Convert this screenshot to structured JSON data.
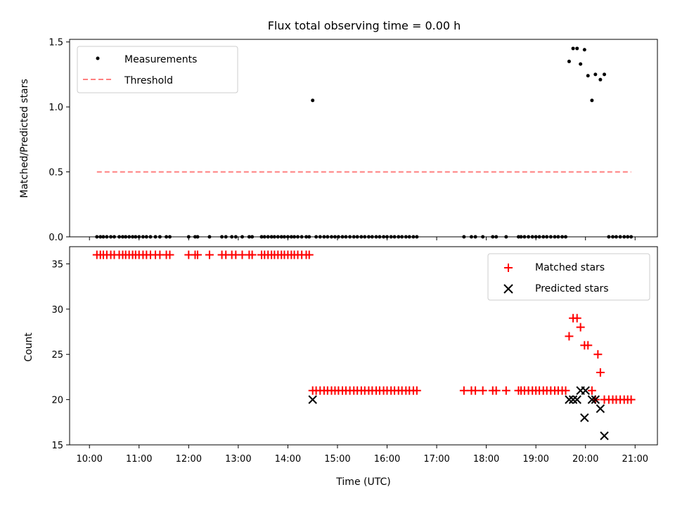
{
  "chart_data": [
    {
      "type": "scatter",
      "title": "Flux total observing time = 0.00 h",
      "xlabel": "",
      "ylabel": "Matched/Predicted stars",
      "xlim": [
        9.6,
        21.45
      ],
      "ylim": [
        0.0,
        1.52
      ],
      "xticks": [
        10,
        11,
        12,
        13,
        14,
        15,
        16,
        17,
        18,
        19,
        20,
        21
      ],
      "yticks": [
        0.0,
        0.5,
        1.0,
        1.5
      ],
      "ytick_labels": [
        "0.0",
        "0.5",
        "1.0",
        "1.5"
      ],
      "legend": {
        "position": "top-left",
        "entries": [
          "Measurements",
          "Threshold"
        ]
      },
      "series": [
        {
          "name": "Measurements",
          "marker": "dot",
          "color": "#000000",
          "points": [
            [
              10.15,
              0
            ],
            [
              10.22,
              0
            ],
            [
              10.28,
              0
            ],
            [
              10.35,
              0
            ],
            [
              10.43,
              0
            ],
            [
              10.5,
              0
            ],
            [
              10.6,
              0
            ],
            [
              10.67,
              0
            ],
            [
              10.73,
              0
            ],
            [
              10.8,
              0
            ],
            [
              10.87,
              0
            ],
            [
              10.93,
              0
            ],
            [
              11.0,
              0
            ],
            [
              11.08,
              0
            ],
            [
              11.15,
              0
            ],
            [
              11.23,
              0
            ],
            [
              11.33,
              0
            ],
            [
              11.42,
              0
            ],
            [
              11.55,
              0
            ],
            [
              11.62,
              0
            ],
            [
              12.0,
              0
            ],
            [
              12.13,
              0
            ],
            [
              12.18,
              0
            ],
            [
              12.42,
              0
            ],
            [
              12.67,
              0
            ],
            [
              12.75,
              0
            ],
            [
              12.87,
              0
            ],
            [
              12.95,
              0
            ],
            [
              13.08,
              0
            ],
            [
              13.22,
              0
            ],
            [
              13.28,
              0
            ],
            [
              13.47,
              0
            ],
            [
              13.53,
              0
            ],
            [
              13.6,
              0
            ],
            [
              13.67,
              0
            ],
            [
              13.73,
              0
            ],
            [
              13.8,
              0
            ],
            [
              13.87,
              0
            ],
            [
              13.93,
              0
            ],
            [
              14.0,
              0
            ],
            [
              14.07,
              0
            ],
            [
              14.13,
              0
            ],
            [
              14.2,
              0
            ],
            [
              14.28,
              0
            ],
            [
              14.37,
              0
            ],
            [
              14.43,
              0
            ],
            [
              14.5,
              1.05
            ],
            [
              14.57,
              0
            ],
            [
              14.65,
              0
            ],
            [
              14.73,
              0
            ],
            [
              14.8,
              0
            ],
            [
              14.88,
              0
            ],
            [
              14.95,
              0
            ],
            [
              15.02,
              0
            ],
            [
              15.1,
              0
            ],
            [
              15.17,
              0
            ],
            [
              15.25,
              0
            ],
            [
              15.33,
              0
            ],
            [
              15.4,
              0
            ],
            [
              15.48,
              0
            ],
            [
              15.55,
              0
            ],
            [
              15.63,
              0
            ],
            [
              15.7,
              0
            ],
            [
              15.78,
              0
            ],
            [
              15.85,
              0
            ],
            [
              15.93,
              0
            ],
            [
              16.0,
              0
            ],
            [
              16.08,
              0
            ],
            [
              16.15,
              0
            ],
            [
              16.23,
              0
            ],
            [
              16.3,
              0
            ],
            [
              16.38,
              0
            ],
            [
              16.45,
              0
            ],
            [
              16.53,
              0
            ],
            [
              16.6,
              0
            ],
            [
              17.55,
              0
            ],
            [
              17.7,
              0
            ],
            [
              17.78,
              0
            ],
            [
              17.93,
              0
            ],
            [
              18.13,
              0
            ],
            [
              18.2,
              0
            ],
            [
              18.4,
              0
            ],
            [
              18.65,
              0
            ],
            [
              18.7,
              0
            ],
            [
              18.77,
              0
            ],
            [
              18.85,
              0
            ],
            [
              18.93,
              0
            ],
            [
              19.0,
              0
            ],
            [
              19.07,
              0
            ],
            [
              19.15,
              0
            ],
            [
              19.22,
              0
            ],
            [
              19.3,
              0
            ],
            [
              19.38,
              0
            ],
            [
              19.45,
              0
            ],
            [
              19.53,
              0
            ],
            [
              19.6,
              0
            ],
            [
              19.67,
              1.35
            ],
            [
              19.75,
              1.45
            ],
            [
              19.83,
              1.45
            ],
            [
              19.9,
              1.33
            ],
            [
              19.98,
              1.44
            ],
            [
              20.05,
              1.24
            ],
            [
              20.13,
              1.05
            ],
            [
              20.2,
              1.25
            ],
            [
              20.3,
              1.21
            ],
            [
              20.38,
              1.25
            ],
            [
              20.47,
              0
            ],
            [
              20.55,
              0
            ],
            [
              20.62,
              0
            ],
            [
              20.7,
              0
            ],
            [
              20.78,
              0
            ],
            [
              20.85,
              0
            ],
            [
              20.92,
              0
            ]
          ]
        },
        {
          "name": "Threshold",
          "style": "dashed-line",
          "color": "#ff7f7f",
          "x": [
            10.15,
            20.92
          ],
          "y": [
            0.5,
            0.5
          ]
        }
      ]
    },
    {
      "type": "scatter",
      "title": "",
      "xlabel": "Time (UTC)",
      "ylabel": "Count",
      "xlim": [
        9.6,
        21.45
      ],
      "ylim": [
        15,
        36.9
      ],
      "xticks": [
        10,
        11,
        12,
        13,
        14,
        15,
        16,
        17,
        18,
        19,
        20,
        21
      ],
      "xtick_labels": [
        "10:00",
        "11:00",
        "12:00",
        "13:00",
        "14:00",
        "15:00",
        "16:00",
        "17:00",
        "18:00",
        "19:00",
        "20:00",
        "21:00"
      ],
      "yticks": [
        15,
        20,
        25,
        30,
        35
      ],
      "ytick_labels": [
        "15",
        "20",
        "25",
        "30",
        "35"
      ],
      "legend": {
        "position": "top-right",
        "entries": [
          "Matched stars",
          "Predicted stars"
        ]
      },
      "series": [
        {
          "name": "Matched stars",
          "marker": "plus",
          "color": "#ff0000",
          "points": [
            [
              10.15,
              36
            ],
            [
              10.22,
              36
            ],
            [
              10.28,
              36
            ],
            [
              10.35,
              36
            ],
            [
              10.43,
              36
            ],
            [
              10.5,
              36
            ],
            [
              10.6,
              36
            ],
            [
              10.67,
              36
            ],
            [
              10.73,
              36
            ],
            [
              10.8,
              36
            ],
            [
              10.87,
              36
            ],
            [
              10.93,
              36
            ],
            [
              11.0,
              36
            ],
            [
              11.08,
              36
            ],
            [
              11.15,
              36
            ],
            [
              11.23,
              36
            ],
            [
              11.33,
              36
            ],
            [
              11.42,
              36
            ],
            [
              11.55,
              36
            ],
            [
              11.62,
              36
            ],
            [
              12.0,
              36
            ],
            [
              12.13,
              36
            ],
            [
              12.18,
              36
            ],
            [
              12.42,
              36
            ],
            [
              12.67,
              36
            ],
            [
              12.75,
              36
            ],
            [
              12.87,
              36
            ],
            [
              12.95,
              36
            ],
            [
              13.08,
              36
            ],
            [
              13.22,
              36
            ],
            [
              13.28,
              36
            ],
            [
              13.47,
              36
            ],
            [
              13.53,
              36
            ],
            [
              13.6,
              36
            ],
            [
              13.67,
              36
            ],
            [
              13.73,
              36
            ],
            [
              13.8,
              36
            ],
            [
              13.87,
              36
            ],
            [
              13.93,
              36
            ],
            [
              14.0,
              36
            ],
            [
              14.07,
              36
            ],
            [
              14.13,
              36
            ],
            [
              14.2,
              36
            ],
            [
              14.28,
              36
            ],
            [
              14.37,
              36
            ],
            [
              14.43,
              36
            ],
            [
              14.5,
              21
            ],
            [
              14.57,
              21
            ],
            [
              14.65,
              21
            ],
            [
              14.73,
              21
            ],
            [
              14.8,
              21
            ],
            [
              14.88,
              21
            ],
            [
              14.95,
              21
            ],
            [
              15.02,
              21
            ],
            [
              15.1,
              21
            ],
            [
              15.17,
              21
            ],
            [
              15.25,
              21
            ],
            [
              15.33,
              21
            ],
            [
              15.4,
              21
            ],
            [
              15.48,
              21
            ],
            [
              15.55,
              21
            ],
            [
              15.63,
              21
            ],
            [
              15.7,
              21
            ],
            [
              15.78,
              21
            ],
            [
              15.85,
              21
            ],
            [
              15.93,
              21
            ],
            [
              16.0,
              21
            ],
            [
              16.08,
              21
            ],
            [
              16.15,
              21
            ],
            [
              16.23,
              21
            ],
            [
              16.3,
              21
            ],
            [
              16.38,
              21
            ],
            [
              16.45,
              21
            ],
            [
              16.53,
              21
            ],
            [
              16.6,
              21
            ],
            [
              17.55,
              21
            ],
            [
              17.7,
              21
            ],
            [
              17.78,
              21
            ],
            [
              17.93,
              21
            ],
            [
              18.13,
              21
            ],
            [
              18.2,
              21
            ],
            [
              18.4,
              21
            ],
            [
              18.65,
              21
            ],
            [
              18.7,
              21
            ],
            [
              18.77,
              21
            ],
            [
              18.85,
              21
            ],
            [
              18.93,
              21
            ],
            [
              19.0,
              21
            ],
            [
              19.07,
              21
            ],
            [
              19.15,
              21
            ],
            [
              19.22,
              21
            ],
            [
              19.3,
              21
            ],
            [
              19.38,
              21
            ],
            [
              19.45,
              21
            ],
            [
              19.53,
              21
            ],
            [
              19.6,
              21
            ],
            [
              19.67,
              27
            ],
            [
              19.75,
              29
            ],
            [
              19.83,
              29
            ],
            [
              19.9,
              28
            ],
            [
              19.98,
              26
            ],
            [
              20.05,
              26
            ],
            [
              20.13,
              21
            ],
            [
              20.2,
              20
            ],
            [
              20.25,
              25
            ],
            [
              20.3,
              23
            ],
            [
              20.38,
              20
            ],
            [
              20.47,
              20
            ],
            [
              20.55,
              20
            ],
            [
              20.62,
              20
            ],
            [
              20.7,
              20
            ],
            [
              20.78,
              20
            ],
            [
              20.85,
              20
            ],
            [
              20.92,
              20
            ]
          ]
        },
        {
          "name": "Predicted stars",
          "marker": "x",
          "color": "#000000",
          "points": [
            [
              14.5,
              20
            ],
            [
              19.67,
              20
            ],
            [
              19.75,
              20
            ],
            [
              19.83,
              20
            ],
            [
              19.9,
              21
            ],
            [
              19.98,
              18
            ],
            [
              20.0,
              21
            ],
            [
              20.13,
              20
            ],
            [
              20.2,
              20
            ],
            [
              20.3,
              19
            ],
            [
              20.38,
              16
            ]
          ]
        }
      ]
    }
  ]
}
